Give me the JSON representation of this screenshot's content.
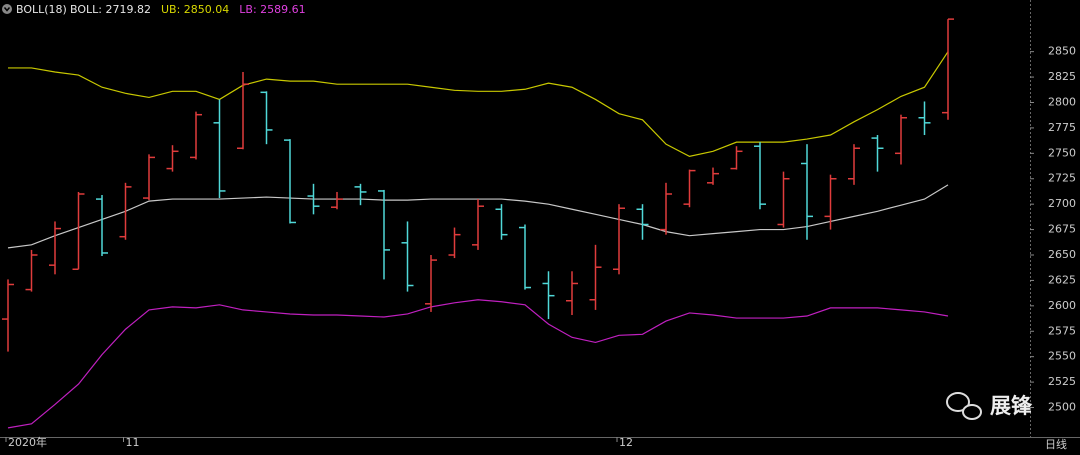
{
  "chart_data": {
    "type": "ohlc",
    "indicator": "BOLL(18)",
    "legend": [
      {
        "label": "BOLL: 2719.82",
        "color": "#e6e6e6"
      },
      {
        "label": "UB: 2850.04",
        "color": "#d8d800"
      },
      {
        "label": "LB: 2589.61",
        "color": "#e040e0"
      }
    ],
    "period": "日线",
    "watermark": "展锋",
    "up_color": "#e03c3c",
    "down_color": "#50d8d8",
    "categories": [
      "2020年",
      null,
      null,
      null,
      null,
      "11",
      null,
      null,
      null,
      null,
      null,
      null,
      null,
      null,
      null,
      null,
      null,
      null,
      null,
      null,
      null,
      null,
      null,
      null,
      null,
      null,
      "12",
      null,
      null,
      null,
      null,
      null,
      null,
      null,
      null,
      null,
      null,
      null,
      null,
      null,
      null
    ],
    "open": [
      2587,
      2616,
      2640,
      2636,
      2705,
      2668,
      2706,
      2735,
      2746,
      2780,
      2755,
      2810,
      2763,
      2708,
      2697,
      2717,
      2713,
      2662,
      2602,
      2650,
      2660,
      2695,
      2677,
      2622,
      2605,
      2606,
      2636,
      2695,
      2675,
      2700,
      2721,
      2735,
      2757,
      2680,
      2740,
      2688,
      2725,
      2765,
      2750,
      2785,
      2790
    ],
    "high": [
      2626,
      2655,
      2683,
      2712,
      2709,
      2721,
      2749,
      2758,
      2791,
      2803,
      2830,
      2811,
      2764,
      2720,
      2712,
      2720,
      2714,
      2683,
      2650,
      2677,
      2705,
      2700,
      2680,
      2634,
      2634,
      2660,
      2700,
      2700,
      2721,
      2734,
      2736,
      2757,
      2761,
      2732,
      2759,
      2729,
      2759,
      2768,
      2788,
      2801,
      2882
    ],
    "low": [
      2555,
      2614,
      2631,
      2636,
      2649,
      2665,
      2704,
      2732,
      2744,
      2706,
      2754,
      2759,
      2681,
      2690,
      2695,
      2699,
      2626,
      2614,
      2594,
      2647,
      2655,
      2665,
      2616,
      2587,
      2591,
      2596,
      2631,
      2665,
      2670,
      2697,
      2719,
      2734,
      2695,
      2677,
      2665,
      2675,
      2719,
      2732,
      2739,
      2768,
      2783
    ],
    "close": [
      2621,
      2650,
      2676,
      2710,
      2652,
      2717,
      2746,
      2752,
      2788,
      2713,
      2818,
      2773,
      2682,
      2698,
      2705,
      2712,
      2655,
      2620,
      2645,
      2670,
      2698,
      2670,
      2618,
      2610,
      2622,
      2638,
      2696,
      2680,
      2710,
      2733,
      2730,
      2752,
      2700,
      2725,
      2688,
      2725,
      2755,
      2755,
      2785,
      2780,
      2882
    ],
    "bands": [
      {
        "color": "#c8c800",
        "values": [
          2834,
          2834,
          2830,
          2827,
          2815,
          2809,
          2805,
          2811,
          2811,
          2803,
          2817,
          2823,
          2821,
          2821,
          2818,
          2818,
          2818,
          2818,
          2815,
          2812,
          2811,
          2811,
          2813,
          2819,
          2815,
          2803,
          2789,
          2783,
          2759,
          2747,
          2752,
          2761,
          2761,
          2761,
          2764,
          2768,
          2781,
          2793,
          2806,
          2815,
          2850
        ]
      },
      {
        "color": "#c8c8c8",
        "values": [
          2657,
          2660,
          2669,
          2677,
          2685,
          2693,
          2703,
          2705,
          2705,
          2705,
          2706,
          2707,
          2706,
          2705,
          2705,
          2705,
          2704,
          2704,
          2705,
          2705,
          2705,
          2705,
          2703,
          2700,
          2695,
          2690,
          2685,
          2680,
          2673,
          2669,
          2671,
          2673,
          2675,
          2675,
          2678,
          2683,
          2688,
          2693,
          2699,
          2705,
          2719
        ]
      },
      {
        "color": "#c020c0",
        "values": [
          2480,
          2484,
          2503,
          2523,
          2552,
          2577,
          2596,
          2599,
          2598,
          2601,
          2596,
          2594,
          2592,
          2591,
          2591,
          2590,
          2589,
          2592,
          2599,
          2603,
          2606,
          2604,
          2601,
          2582,
          2569,
          2564,
          2571,
          2572,
          2585,
          2593,
          2591,
          2588,
          2588,
          2588,
          2590,
          2598,
          2598,
          2598,
          2596,
          2594,
          2590
        ]
      }
    ],
    "ylim": [
      2471,
      2889
    ],
    "yticks": [
      2500,
      2525,
      2550,
      2575,
      2600,
      2625,
      2650,
      2675,
      2700,
      2725,
      2750,
      2775,
      2800,
      2825,
      2850
    ]
  }
}
